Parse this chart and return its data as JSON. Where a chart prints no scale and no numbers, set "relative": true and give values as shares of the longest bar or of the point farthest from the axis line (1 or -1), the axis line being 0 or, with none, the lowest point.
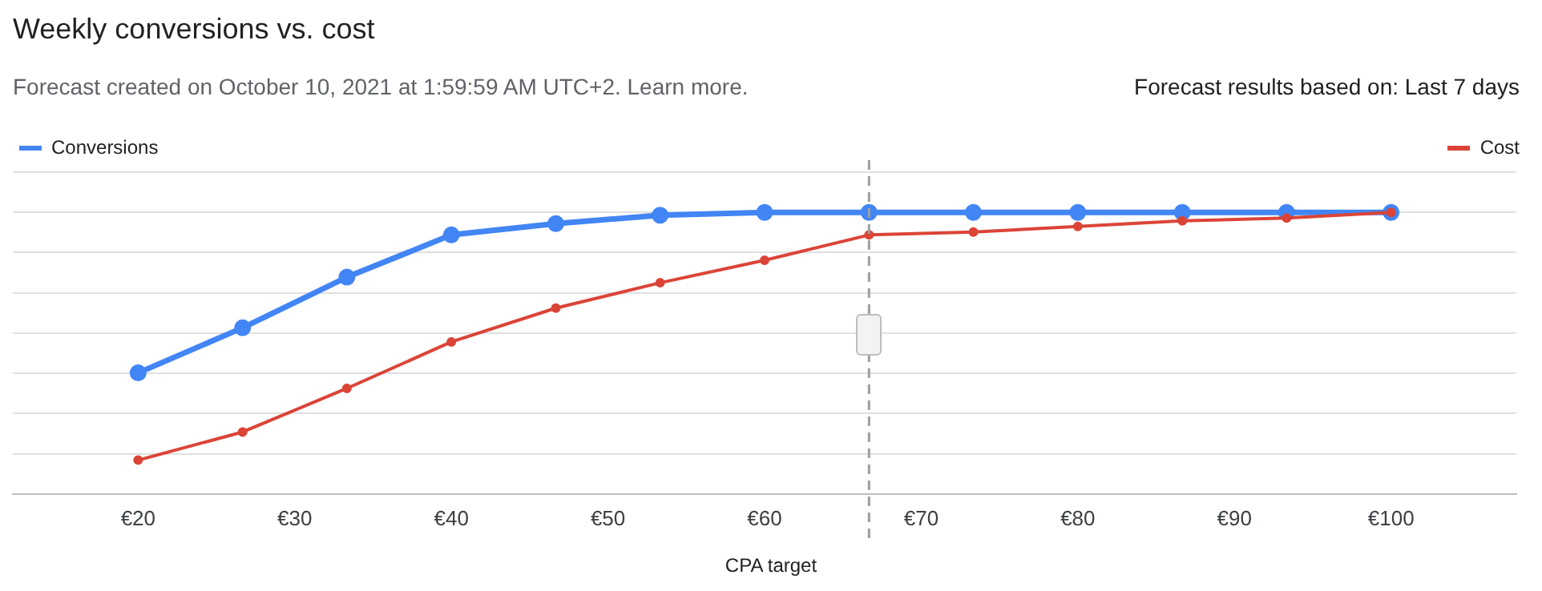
{
  "chart_data": {
    "type": "line",
    "title": "Weekly conversions vs. cost",
    "subtitle": "Forecast created on October 10, 2021 at 1:59:59 AM UTC+2. Learn more.",
    "annotations": [
      "Forecast results based on: Last 7 days"
    ],
    "xlabel": "CPA target",
    "relative": true,
    "x": [
      20,
      26.67,
      33.33,
      40,
      46.67,
      53.33,
      60,
      66.67,
      73.33,
      80,
      86.67,
      93.33,
      100
    ],
    "xlim": [
      12,
      108
    ],
    "xticks": [
      {
        "value": 20,
        "label": "€20"
      },
      {
        "value": 30,
        "label": "€30"
      },
      {
        "value": 40,
        "label": "€40"
      },
      {
        "value": 50,
        "label": "€50"
      },
      {
        "value": 60,
        "label": "€60"
      },
      {
        "value": 70,
        "label": "€70"
      },
      {
        "value": 80,
        "label": "€80"
      },
      {
        "value": 90,
        "label": "€90"
      },
      {
        "value": 100,
        "label": "€100"
      }
    ],
    "series": [
      {
        "name": "Conversions",
        "color": "#4285f4",
        "values": [
          0.43,
          0.59,
          0.77,
          0.92,
          0.96,
          0.99,
          1,
          1,
          1,
          1,
          1,
          1,
          1
        ]
      },
      {
        "name": "Cost",
        "color": "#db4437",
        "values": [
          0.12,
          0.22,
          0.375,
          0.54,
          0.66,
          0.75,
          0.83,
          0.92,
          0.93,
          0.95,
          0.97,
          0.98,
          1
        ]
      }
    ],
    "ref_lines": [
      {
        "axis": "x",
        "value": 66.67,
        "color": "#9e9e9e",
        "line_style": "dashed"
      }
    ],
    "grid": "y",
    "legend": "top",
    "marker": "circle",
    "line_style": "solid"
  }
}
